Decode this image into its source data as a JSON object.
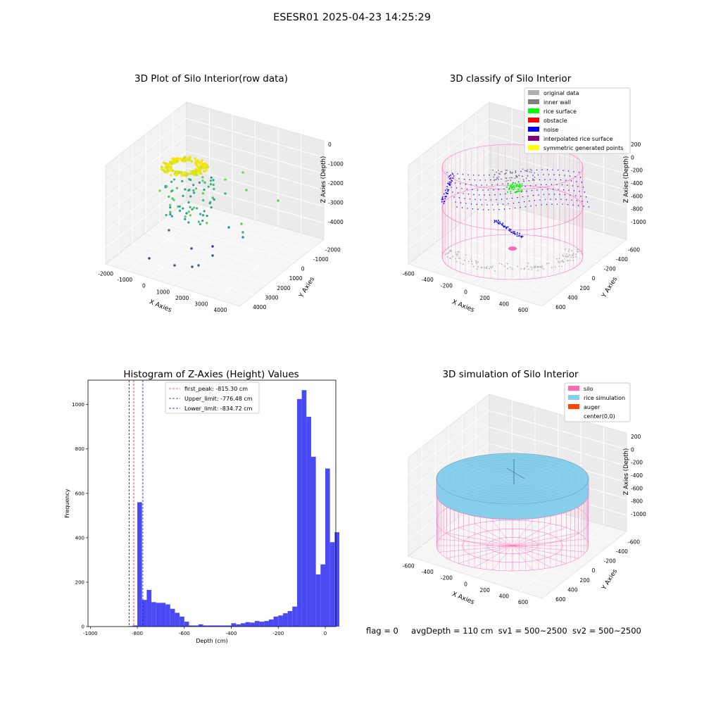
{
  "figure": {
    "suptitle": "ESESR01 2025-04-23 14:25:29",
    "status": {
      "flag": "flag = 0",
      "avg_depth": "avgDepth = 110 cm",
      "sv1": "sv1 = 500~2500",
      "sv2": "sv2 = 500~2500"
    }
  },
  "colors": {
    "histogram_bar": "#4a4af5",
    "first_peak_line": "#e02020",
    "limit_line": "#1010d0",
    "silo_wire": "#ff69b4",
    "rice_simulation": "#87ceeb",
    "auger": "#ff4500",
    "original_data": "#b0b0b0",
    "inner_wall": "#808080",
    "rice_surface": "#00ff00",
    "obstacle": "#ff0000",
    "noise": "#0000ff",
    "interpolated_rice_surface": "#800080",
    "symmetric_generated_points": "#ffff00"
  },
  "chart_data": [
    {
      "type": "scatter",
      "title": "3D Plot of Silo Interior(row data)",
      "xlabel": "X Axies",
      "ylabel": "Y Axies",
      "zlabel": "Z Axies (Depth)",
      "x_ticks": [
        "-2000",
        "-1000",
        "0",
        "1000",
        "2000",
        "3000",
        "4000"
      ],
      "y_ticks": [
        "-2000",
        "-1000",
        "0",
        "1000",
        "2000",
        "3000",
        "4000"
      ],
      "z_ticks": [
        "0",
        "-1000",
        "-2000",
        "-3000",
        "-4000"
      ],
      "xlim": [
        -2500,
        4200
      ],
      "ylim": [
        -2200,
        4200
      ],
      "zlim": [
        -4500,
        200
      ],
      "grid": true
    },
    {
      "type": "scatter",
      "title": "3D classify of Silo Interior",
      "xlabel": "X Axies",
      "ylabel": "Y Axies",
      "zlabel": "Z Axies (Depth)",
      "x_ticks": [
        "-600",
        "-400",
        "-200",
        "0",
        "200",
        "400",
        "600"
      ],
      "y_ticks": [
        "-600",
        "-400",
        "-200",
        "0",
        "200",
        "400",
        "600"
      ],
      "z_ticks": [
        "200",
        "0",
        "-200",
        "-400",
        "-600",
        "-800",
        "-1000"
      ],
      "legend_position": "top-right",
      "legend": [
        "original data",
        "inner wall",
        "rice surface",
        "obstacle",
        "noise",
        "interpolated rice surface",
        "symmetric generated points"
      ],
      "grid": true
    },
    {
      "type": "bar",
      "title": "Histogram of Z-Axies (Height) Values",
      "xlabel": "Depth (cm)",
      "ylabel": "Frequency",
      "xlim": [
        -1010,
        45
      ],
      "ylim": [
        0,
        1110
      ],
      "x_ticks": [
        -1000,
        -800,
        -600,
        -400,
        -200,
        0
      ],
      "y_ticks": [
        0,
        200,
        400,
        600,
        800,
        1000
      ],
      "bin_start": -1000,
      "bin_width": 20,
      "values": [
        0,
        0,
        0,
        0,
        0,
        0,
        0,
        0,
        2,
        5,
        560,
        120,
        165,
        110,
        107,
        107,
        100,
        80,
        62,
        45,
        22,
        5,
        5,
        10,
        5,
        5,
        5,
        5,
        5,
        5,
        15,
        10,
        15,
        20,
        18,
        25,
        22,
        25,
        32,
        45,
        50,
        60,
        70,
        90,
        1025,
        1065,
        945,
        765,
        235,
        280,
        712,
        380,
        425
      ],
      "lines": [
        {
          "name": "first_peak",
          "value": -815.3,
          "label": "first_peak: -815.30 cm"
        },
        {
          "name": "upper_limit",
          "value": -776.48,
          "label": "Upper_limit: -776.48 cm"
        },
        {
          "name": "lower_limit",
          "value": -834.72,
          "label": "Lower_limit: -834.72 cm"
        }
      ],
      "legend_position": "upper-center"
    },
    {
      "type": "scatter",
      "title": "3D simulation of Silo Interior",
      "xlabel": "X Axies",
      "ylabel": "Y Axies",
      "zlabel": "Z Axies (Depth)",
      "x_ticks": [
        "-600",
        "-400",
        "-200",
        "0",
        "200",
        "400",
        "600"
      ],
      "y_ticks": [
        "-600",
        "-400",
        "-200",
        "0",
        "200",
        "400",
        "600"
      ],
      "z_ticks": [
        "200",
        "0",
        "-200",
        "-400",
        "-600",
        "-800",
        "-1000"
      ],
      "legend_position": "top-right",
      "legend": [
        "silo",
        "rice simulation",
        "auger",
        "center(0,0)"
      ],
      "grid": true
    }
  ]
}
